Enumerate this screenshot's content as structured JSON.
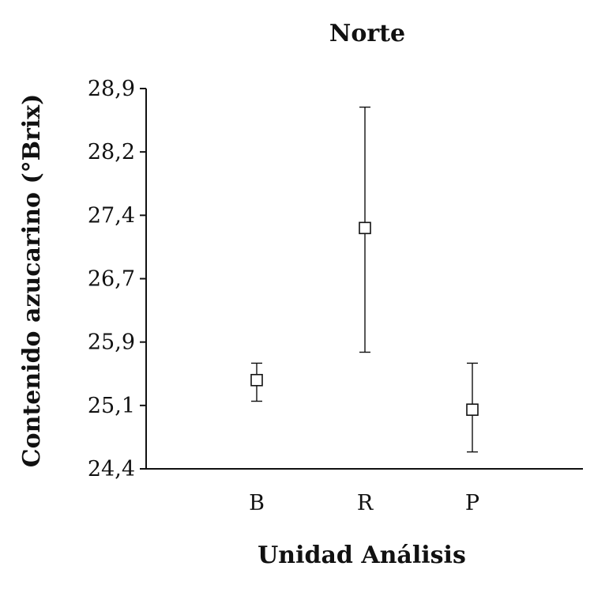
{
  "chart_data": {
    "type": "scatter",
    "title": "Norte",
    "xlabel": "Unidad Análisis",
    "ylabel": "Contenido azucarino (°Brix)",
    "categories": [
      "B",
      "R",
      "P"
    ],
    "series": [
      {
        "values": [
          25.45,
          27.25,
          25.1
        ],
        "lower": [
          25.2,
          25.78,
          24.6
        ],
        "upper": [
          25.65,
          28.68,
          25.65
        ]
      }
    ],
    "yticks": [
      "24,4",
      "25,1",
      "25,9",
      "26,7",
      "27,4",
      "28,2",
      "28,9"
    ],
    "ylim": [
      24.4,
      28.9
    ],
    "grid": false,
    "legend": "none",
    "colors": {
      "line": "#111111",
      "marker_fill": "#ffffff"
    }
  }
}
